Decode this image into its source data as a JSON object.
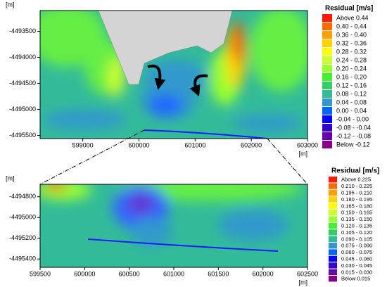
{
  "chart_data": [
    {
      "type": "contour",
      "xlabel": "[m]",
      "ylabel": "[m]",
      "xlim": [
        598240,
        603000
      ],
      "xticks": [
        599000,
        600000,
        601000,
        602000,
        603000
      ],
      "ylim": [
        -4495560,
        -4493100
      ],
      "yticks": [
        -4493500,
        -4494000,
        -4494500,
        -4495000,
        -4495500
      ],
      "legend": {
        "title": "Residual [m/s]",
        "items": [
          {
            "label": "Above  0.44",
            "color": "#ff1a00"
          },
          {
            "label": "0.40 -  0.44",
            "color": "#ff6a00"
          },
          {
            "label": "0.36 -  0.40",
            "color": "#ffa000"
          },
          {
            "label": "0.32 -  0.36",
            "color": "#ffd200"
          },
          {
            "label": "0.28 -  0.32",
            "color": "#ffff00"
          },
          {
            "label": "0.24 -  0.28",
            "color": "#ccff33"
          },
          {
            "label": "0.20 -  0.24",
            "color": "#99ff33"
          },
          {
            "label": "0.16 -  0.20",
            "color": "#44ee33"
          },
          {
            "label": "0.12 -  0.16",
            "color": "#33cc66"
          },
          {
            "label": "0.08 -  0.12",
            "color": "#33bb99"
          },
          {
            "label": "0.04 -  0.08",
            "color": "#3399cc"
          },
          {
            "label": "0.00 -  0.04",
            "color": "#0066ff"
          },
          {
            "label": "-0.04 -  0.00",
            "color": "#0000ff"
          },
          {
            "label": "-0.08 - -0.04",
            "color": "#3300cc"
          },
          {
            "label": "-0.12 - -0.08",
            "color": "#6600aa"
          },
          {
            "label": "Below -0.12",
            "color": "#880088"
          }
        ]
      }
    },
    {
      "type": "contour",
      "xlabel": "[m]",
      "ylabel": "[m]",
      "xlim": [
        599500,
        602500
      ],
      "xticks": [
        599500,
        600000,
        600500,
        601000,
        601500,
        602000,
        602500
      ],
      "ylim": [
        -4495480,
        -4494680
      ],
      "yticks": [
        -4494800,
        -4495000,
        -4495200,
        -4495400
      ],
      "legend": {
        "title": "Residual [m/s]",
        "items": [
          {
            "label": "Above 0.225",
            "color": "#ff1a00"
          },
          {
            "label": "0.210 - 0.225",
            "color": "#ff6a00"
          },
          {
            "label": "0.195 - 0.210",
            "color": "#ffa000"
          },
          {
            "label": "0.180 - 0.195",
            "color": "#ffd200"
          },
          {
            "label": "0.165 - 0.180",
            "color": "#ffff00"
          },
          {
            "label": "0.150 - 0.165",
            "color": "#ccff33"
          },
          {
            "label": "0.135 - 0.150",
            "color": "#99ff33"
          },
          {
            "label": "0.120 - 0.135",
            "color": "#44ee33"
          },
          {
            "label": "0.105 - 0.120",
            "color": "#33cc66"
          },
          {
            "label": "0.090 - 0.105",
            "color": "#33bb99"
          },
          {
            "label": "0.075 - 0.090",
            "color": "#3399cc"
          },
          {
            "label": "0.060 - 0.075",
            "color": "#0066ff"
          },
          {
            "label": "0.045 - 0.060",
            "color": "#0000ff"
          },
          {
            "label": "0.030 - 0.045",
            "color": "#3300cc"
          },
          {
            "label": "0.015 - 0.030",
            "color": "#6600aa"
          },
          {
            "label": "Below 0.015",
            "color": "#880088"
          }
        ]
      }
    }
  ]
}
